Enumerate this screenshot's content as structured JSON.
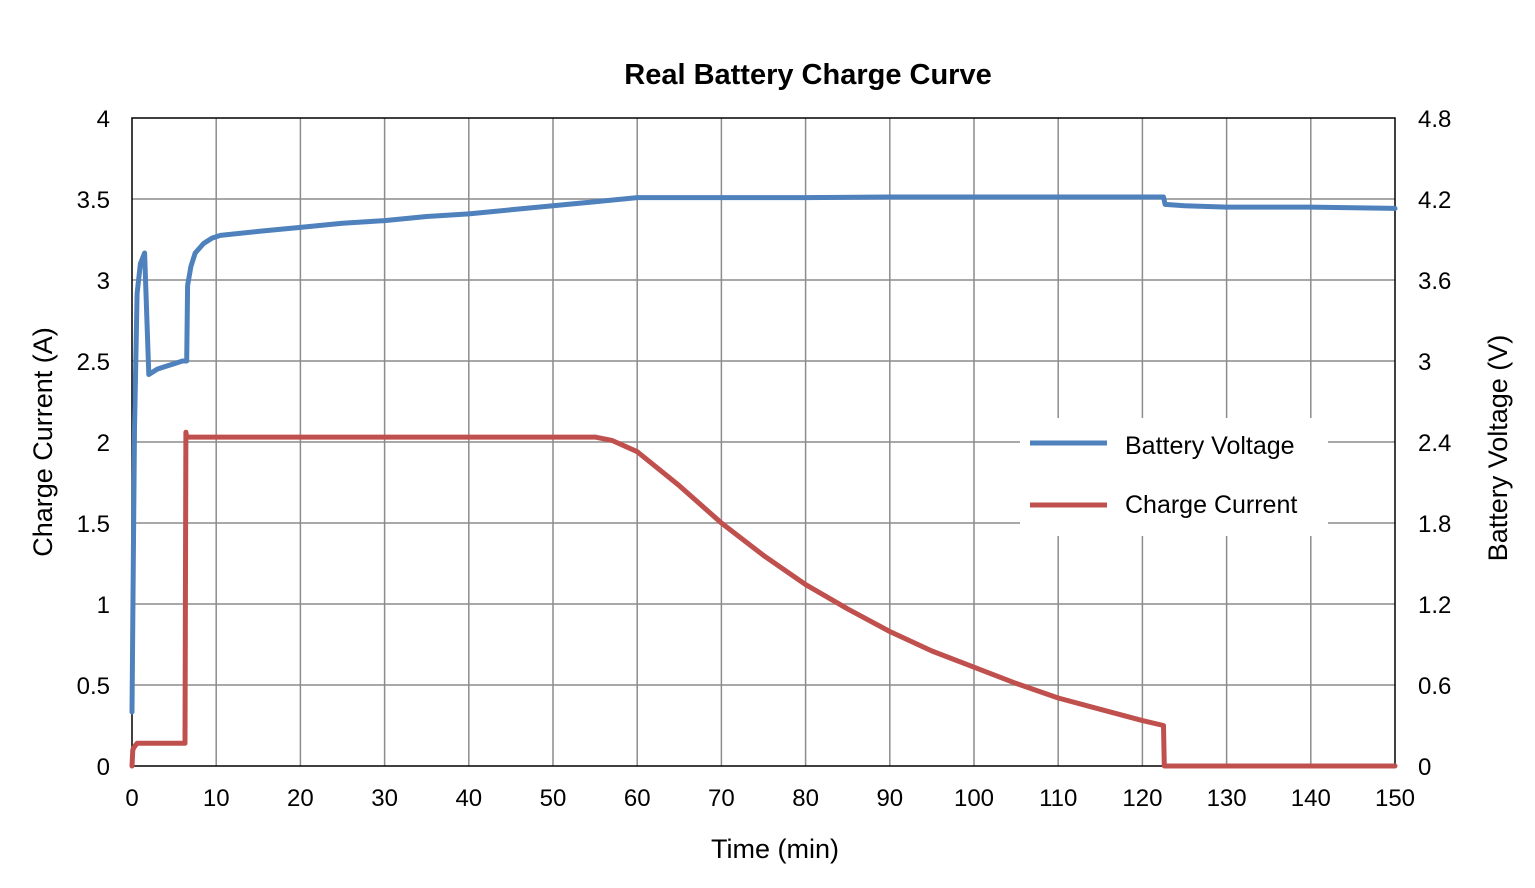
{
  "chart_data": {
    "type": "line",
    "title": "Real Battery Charge Curve",
    "xlabel": "Time (min)",
    "ylabel_left": "Charge Current (A)",
    "ylabel_right": "Battery Voltage (V)",
    "xlim": [
      0,
      150
    ],
    "ylim_left": [
      0,
      4
    ],
    "ylim_right": [
      0,
      4.8
    ],
    "x_ticks": [
      "0",
      "10",
      "20",
      "30",
      "40",
      "50",
      "60",
      "70",
      "80",
      "90",
      "100",
      "110",
      "120",
      "130",
      "140",
      "150"
    ],
    "y_left_ticks": [
      "0",
      "0.5",
      "1",
      "1.5",
      "2",
      "2.5",
      "3",
      "3.5",
      "4"
    ],
    "y_right_ticks": [
      "0",
      "0.6",
      "1.2",
      "1.8",
      "2.4",
      "3",
      "3.6",
      "4.2",
      "4.8"
    ],
    "grid": true,
    "legend_position": "right-middle",
    "series": [
      {
        "name": "Battery Voltage",
        "axis": "right",
        "color": "#4f81bd",
        "x": [
          0.0,
          0.15,
          0.3,
          0.6,
          1.0,
          1.5,
          2.0,
          3.0,
          4.0,
          5.0,
          6.0,
          6.5,
          6.6,
          7.0,
          7.5,
          8.5,
          9.5,
          10.5,
          15,
          20,
          25,
          30,
          35,
          40,
          45,
          50,
          55,
          60,
          70,
          80,
          90,
          100,
          110,
          120,
          122.5,
          122.7,
          125,
          130,
          140,
          150
        ],
        "y": [
          0.4,
          1.5,
          2.5,
          3.5,
          3.72,
          3.8,
          2.9,
          2.94,
          2.96,
          2.98,
          3.0,
          3.0,
          3.56,
          3.7,
          3.8,
          3.87,
          3.91,
          3.93,
          3.96,
          3.99,
          4.02,
          4.04,
          4.07,
          4.09,
          4.12,
          4.15,
          4.18,
          4.21,
          4.21,
          4.21,
          4.215,
          4.215,
          4.215,
          4.215,
          4.215,
          4.16,
          4.15,
          4.14,
          4.14,
          4.13
        ]
      },
      {
        "name": "Charge Current",
        "axis": "left",
        "color": "#c0504d",
        "x": [
          0.0,
          0.1,
          0.3,
          0.6,
          6.3,
          6.4,
          6.5,
          10,
          20,
          30,
          40,
          50,
          55,
          57,
          60,
          65,
          70,
          75,
          80,
          85,
          90,
          95,
          100,
          105,
          110,
          115,
          120,
          122.5,
          122.6,
          130,
          140,
          150
        ],
        "y": [
          0.0,
          0.1,
          0.12,
          0.14,
          0.14,
          2.06,
          2.03,
          2.03,
          2.03,
          2.03,
          2.03,
          2.03,
          2.03,
          2.01,
          1.94,
          1.73,
          1.5,
          1.3,
          1.12,
          0.97,
          0.83,
          0.71,
          0.61,
          0.51,
          0.42,
          0.35,
          0.28,
          0.25,
          0.0,
          0.0,
          0.0,
          0.0
        ]
      }
    ]
  }
}
